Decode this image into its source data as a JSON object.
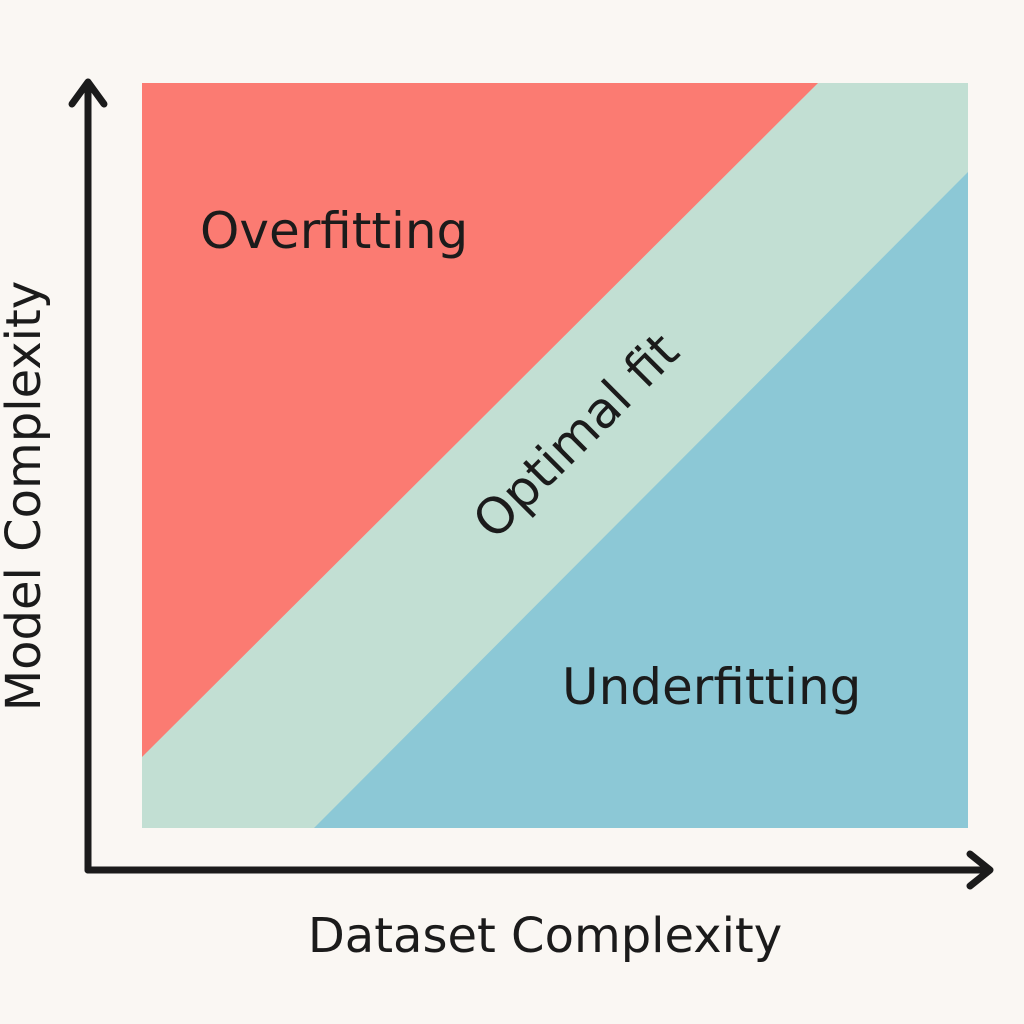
{
  "diagram": {
    "regions": {
      "overfitting": {
        "label": "Overfitting",
        "color": "#fb7b72"
      },
      "optimal": {
        "label": "Optimal fit",
        "color": "#c2dfd3"
      },
      "underfitting": {
        "label": "Underfitting",
        "color": "#8cc8d6"
      }
    },
    "axes": {
      "x_label": "Dataset Complexity",
      "y_label": "Model Complexity",
      "color": "#1b1b1b"
    }
  }
}
